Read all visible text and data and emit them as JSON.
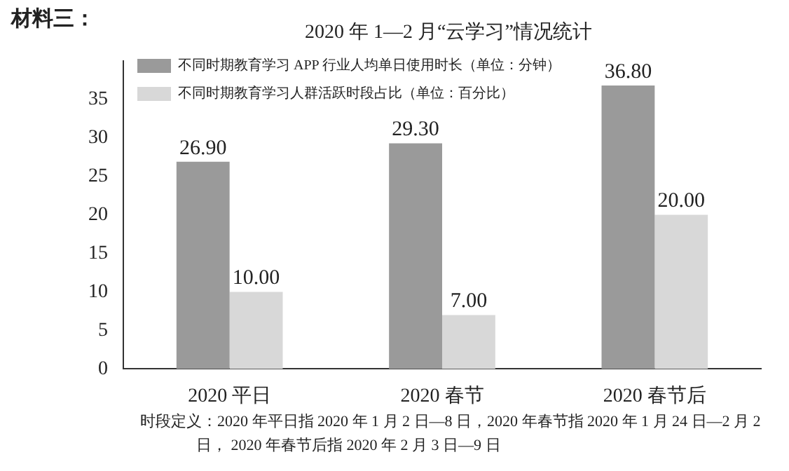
{
  "chart_data": {
    "type": "bar",
    "title": "2020 年 1—2 月“云学习”情况统计",
    "categories": [
      "2020 平日",
      "2020 春节",
      "2020 春节后"
    ],
    "series": [
      {
        "name": "不同时期教育学习 APP 行业人均单日使用时长（单位：分钟）",
        "color": "#9a9a9a",
        "values": [
          26.9,
          29.3,
          36.8
        ],
        "value_labels": [
          "26.90",
          "29.30",
          "36.80"
        ]
      },
      {
        "name": "不同时期教育学习人群活跃时段占比（单位：百分比）",
        "color": "#d8d8d8",
        "values": [
          10.0,
          7.0,
          20.0
        ],
        "value_labels": [
          "10.00",
          "7.00",
          "20.00"
        ]
      }
    ],
    "ylim": [
      0,
      40
    ],
    "yticks": [
      0,
      5,
      10,
      15,
      20,
      25,
      30,
      35
    ],
    "grid": false,
    "legend": "top left",
    "annotations": [
      "材料三：",
      "时段定义：2020 年平日指 2020 年 1 月 2 日—8 日，2020 年春节指 2020 年 1 月 24 日—2 月 2 日， 2020 年春节后指 2020 年 2 月 3 日—9 日"
    ]
  }
}
